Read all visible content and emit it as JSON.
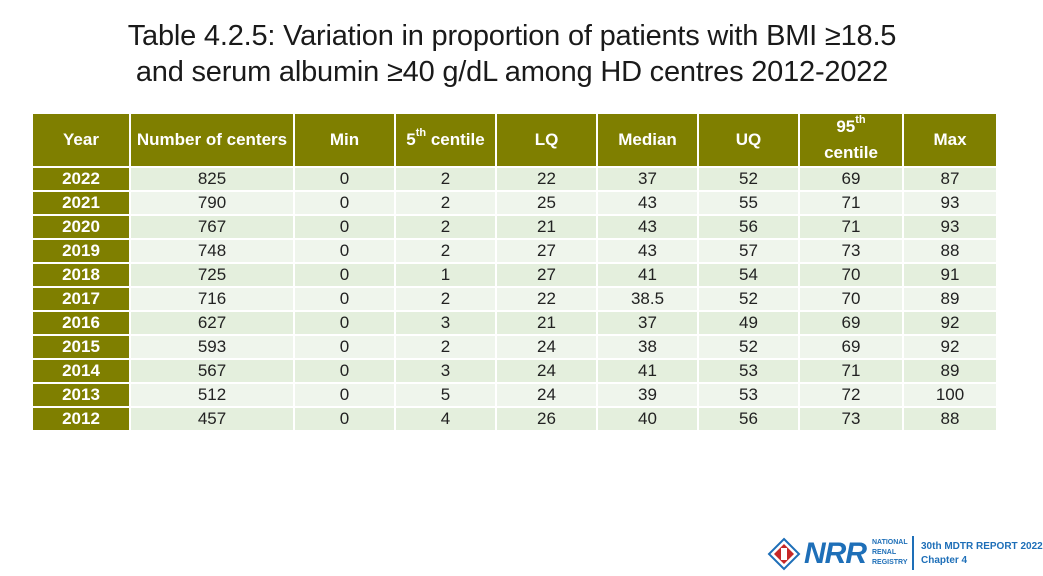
{
  "title": {
    "line1": "Table 4.2.5: Variation in proportion of patients with BMI ≥18.5",
    "line2": "and serum albumin ≥40 g/dL among HD centres 2012-2022"
  },
  "table": {
    "headers": {
      "year": "Year",
      "centers": "Number of centers",
      "min": "Min",
      "c5_num": "5",
      "c5_sup": "th",
      "c5_word": " centile",
      "lq": "LQ",
      "median": "Median",
      "uq": "UQ",
      "c95_num": "95",
      "c95_sup": "th",
      "c95_word": "centile",
      "max": "Max"
    },
    "rows": [
      [
        "2022",
        "825",
        "0",
        "2",
        "22",
        "37",
        "52",
        "69",
        "87"
      ],
      [
        "2021",
        "790",
        "0",
        "2",
        "25",
        "43",
        "55",
        "71",
        "93"
      ],
      [
        "2020",
        "767",
        "0",
        "2",
        "21",
        "43",
        "56",
        "71",
        "93"
      ],
      [
        "2019",
        "748",
        "0",
        "2",
        "27",
        "43",
        "57",
        "73",
        "88"
      ],
      [
        "2018",
        "725",
        "0",
        "1",
        "27",
        "41",
        "54",
        "70",
        "91"
      ],
      [
        "2017",
        "716",
        "0",
        "2",
        "22",
        "38.5",
        "52",
        "70",
        "89"
      ],
      [
        "2016",
        "627",
        "0",
        "3",
        "21",
        "37",
        "49",
        "69",
        "92"
      ],
      [
        "2015",
        "593",
        "0",
        "2",
        "24",
        "38",
        "52",
        "69",
        "92"
      ],
      [
        "2014",
        "567",
        "0",
        "3",
        "24",
        "41",
        "53",
        "71",
        "89"
      ],
      [
        "2013",
        "512",
        "0",
        "5",
        "24",
        "39",
        "53",
        "72",
        "100"
      ],
      [
        "2012",
        "457",
        "0",
        "4",
        "26",
        "40",
        "56",
        "73",
        "88"
      ]
    ]
  },
  "footer": {
    "logo_text": "NRR",
    "registry_line1": "NATIONAL",
    "registry_line2": "RENAL",
    "registry_line3": "REGISTRY",
    "report_line1": "30th MDTR REPORT 2022",
    "report_line2": "Chapter 4"
  }
}
